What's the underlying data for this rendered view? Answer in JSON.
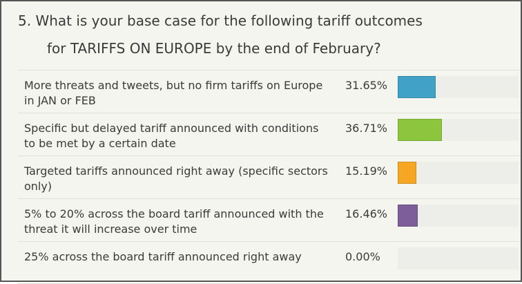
{
  "question": {
    "line1": "5. What is your base case for the following tariff outcomes",
    "line2": "for TARIFFS ON EUROPE by the end of February?"
  },
  "chart_data": {
    "type": "bar",
    "title": "5. What is your base case for the following tariff outcomes for TARIFFS ON EUROPE by the end of February?",
    "categories": [
      "More threats and tweets, but no firm tariffs on Europe in JAN or FEB",
      "Specific but delayed tariff announced with conditions to be met by a certain date",
      "Targeted tariffs announced right away (specific sectors only)",
      "5% to 20% across the board tariff announced with the threat it will increase over time",
      "25% across the board tariff announced right away"
    ],
    "values": [
      31.65,
      36.71,
      15.19,
      16.46,
      0.0
    ],
    "labels": [
      "31.65%",
      "36.71%",
      "15.19%",
      "16.46%",
      "0.00%"
    ],
    "colors": [
      "#41a1c6",
      "#8cc63f",
      "#f5a623",
      "#7b5e9a",
      "#cccccc"
    ],
    "xlim": [
      0,
      100
    ],
    "orientation": "horizontal",
    "grid": false
  }
}
